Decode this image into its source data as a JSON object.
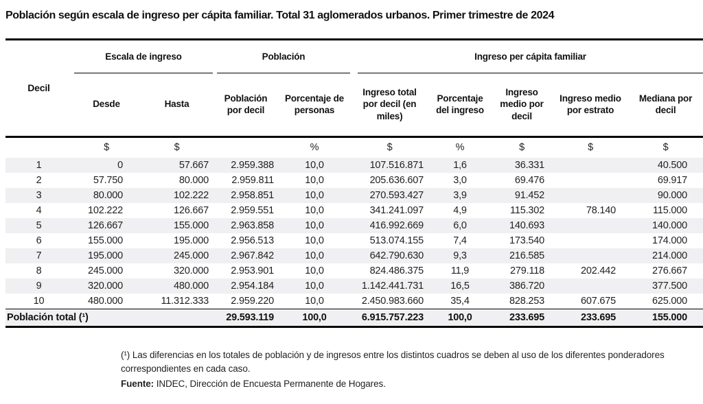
{
  "title": "Población según escala de ingreso per cápita familiar. Total 31 aglomerados urbanos. Primer trimestre de 2024",
  "table": {
    "decil_label": "Decil",
    "groups": [
      "Escala de ingreso",
      "Población",
      "Ingreso per cápita familiar"
    ],
    "subheaders": [
      "Desde",
      "Hasta",
      "Población por decil",
      "Porcentaje de personas",
      "Ingreso total por decil (en miles)",
      "Porcentaje del ingreso",
      "Ingreso medio por decil",
      "Ingreso medio por estrato",
      "Mediana por decil"
    ],
    "units": [
      "",
      "$",
      "$",
      "",
      "%",
      "$",
      "%",
      "$",
      "$",
      "$"
    ],
    "col_keys": [
      "decil",
      "desde",
      "hasta",
      "poblacion-por-decil",
      "porcentaje-de-personas",
      "ingreso-total-por-decil",
      "porcentaje-del-ingreso",
      "ingreso-medio-por-decil",
      "ingreso-medio-por-estrato",
      "mediana-por-decil"
    ],
    "rows": [
      [
        "1",
        "0",
        "57.667",
        "2.959.388",
        "10,0",
        "107.516.871",
        "1,6",
        "36.331",
        "",
        "40.500"
      ],
      [
        "2",
        "57.750",
        "80.000",
        "2.959.811",
        "10,0",
        "205.636.607",
        "3,0",
        "69.476",
        "",
        "69.917"
      ],
      [
        "3",
        "80.000",
        "102.222",
        "2.958.851",
        "10,0",
        "270.593.427",
        "3,9",
        "91.452",
        "",
        "90.000"
      ],
      [
        "4",
        "102.222",
        "126.667",
        "2.959.551",
        "10,0",
        "341.241.097",
        "4,9",
        "115.302",
        "78.140",
        "115.000"
      ],
      [
        "5",
        "126.667",
        "155.000",
        "2.963.858",
        "10,0",
        "416.992.669",
        "6,0",
        "140.693",
        "",
        "140.000"
      ],
      [
        "6",
        "155.000",
        "195.000",
        "2.956.513",
        "10,0",
        "513.074.155",
        "7,4",
        "173.540",
        "",
        "174.000"
      ],
      [
        "7",
        "195.000",
        "245.000",
        "2.967.842",
        "10,0",
        "642.790.630",
        "9,3",
        "216.585",
        "",
        "214.000"
      ],
      [
        "8",
        "245.000",
        "320.000",
        "2.953.901",
        "10,0",
        "824.486.375",
        "11,9",
        "279.118",
        "202.442",
        "276.667"
      ],
      [
        "9",
        "320.000",
        "480.000",
        "2.954.184",
        "10,0",
        "1.142.441.731",
        "16,5",
        "386.720",
        "",
        "377.500"
      ],
      [
        "10",
        "480.000",
        "11.312.333",
        "2.959.220",
        "10,0",
        "2.450.983.660",
        "35,4",
        "828.253",
        "607.675",
        "625.000"
      ]
    ],
    "total": [
      "Población total (¹)",
      "29.593.119",
      "100,0",
      "6.915.757.223",
      "100,0",
      "233.695",
      "233.695",
      "155.000"
    ]
  },
  "footnote": {
    "note": "(¹) Las diferencias en los totales de población y de ingresos entre los distintos cuadros se deben al uso de los diferentes ponderadores correspondientes en cada caso.",
    "source_label": "Fuente:",
    "source_text": "INDEC, Dirección de Encuesta Permanente de Hogares."
  }
}
